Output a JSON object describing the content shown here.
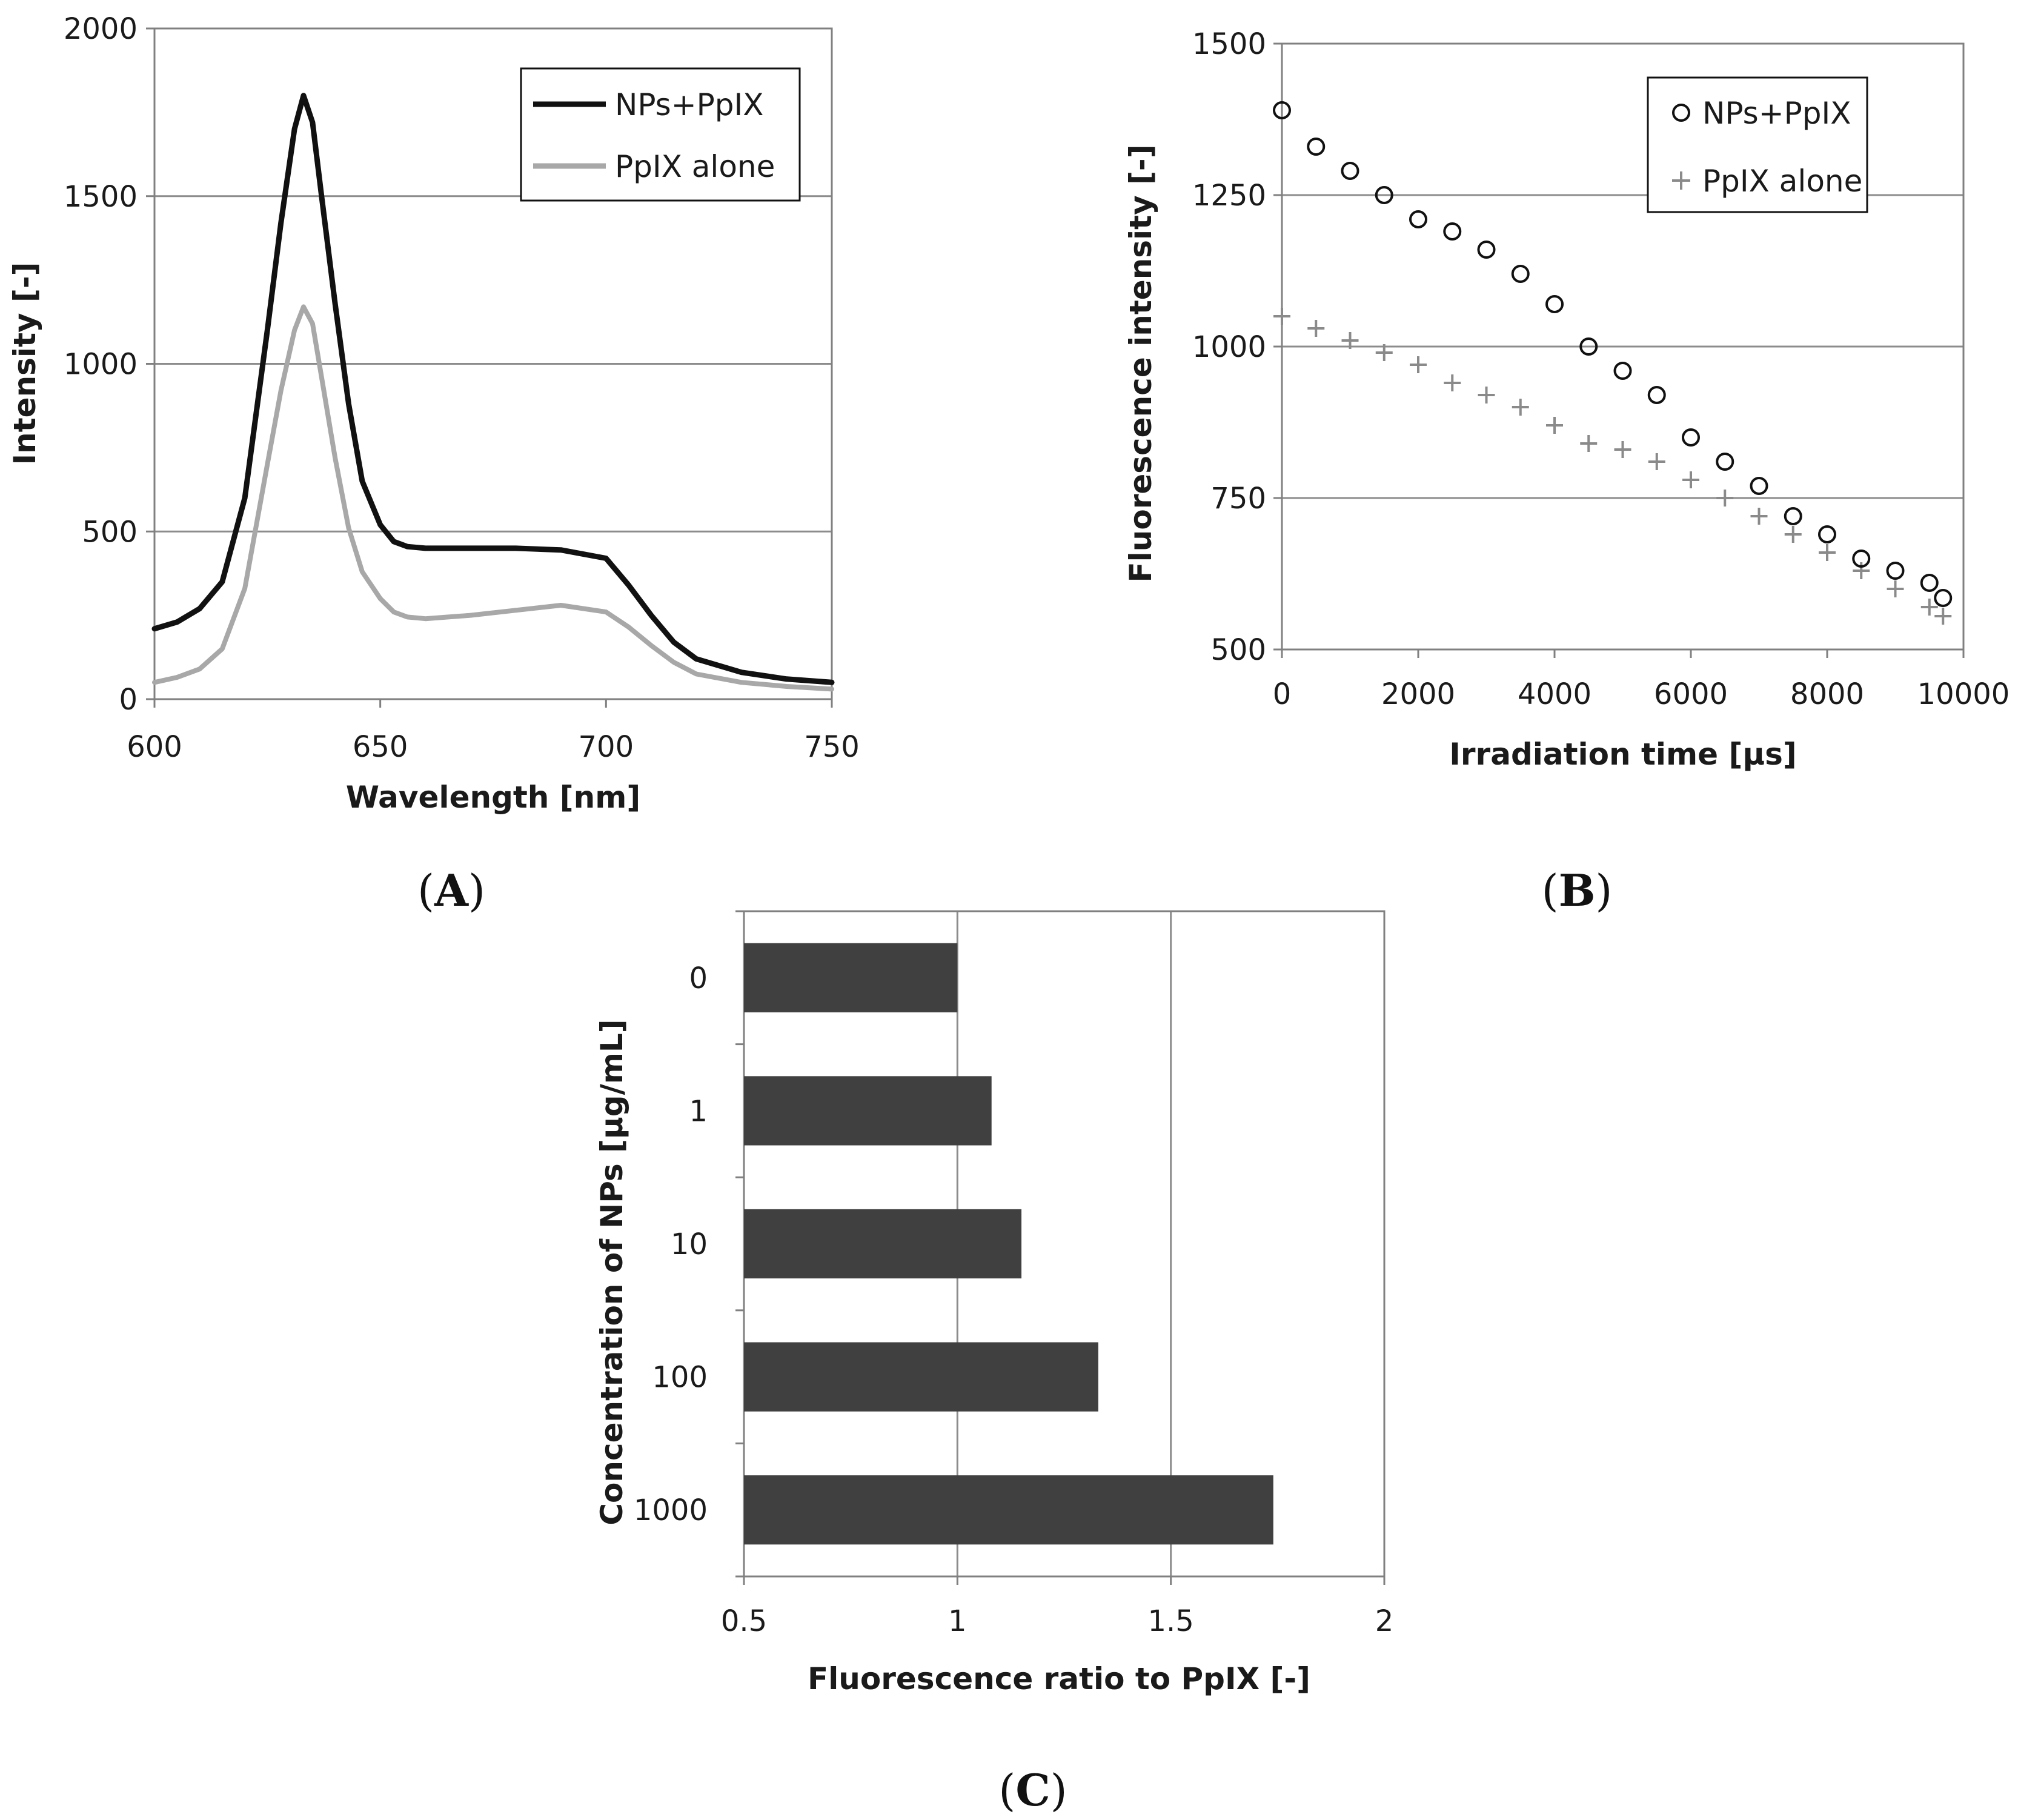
{
  "colors": {
    "nps_line": "#111111",
    "ppix_line": "#a8a8a8",
    "grid": "#8c8c8c",
    "bar": "#404040",
    "frame": "#808080"
  },
  "chart_data": [
    {
      "type": "line",
      "panel_label": "A",
      "title": "",
      "xlabel": "Wavelength [nm]",
      "ylabel": "Intensity [-]",
      "xlim": [
        600,
        750
      ],
      "ylim": [
        0,
        2000
      ],
      "xticks": [
        600,
        650,
        700,
        750
      ],
      "yticks": [
        0,
        500,
        1000,
        1500,
        2000
      ],
      "grid": "horizontal",
      "legend_position": "top-right",
      "x": [
        600,
        605,
        610,
        615,
        620,
        625,
        628,
        631,
        633,
        635,
        637,
        640,
        643,
        646,
        650,
        653,
        656,
        660,
        670,
        680,
        690,
        700,
        705,
        710,
        715,
        720,
        730,
        740,
        750
      ],
      "series": [
        {
          "name": "NPs+PpIX",
          "values": [
            210,
            230,
            270,
            350,
            600,
            1100,
            1420,
            1700,
            1800,
            1720,
            1500,
            1180,
            880,
            650,
            520,
            470,
            455,
            450,
            450,
            450,
            445,
            420,
            340,
            250,
            170,
            120,
            80,
            60,
            50
          ]
        },
        {
          "name": "PpIX alone",
          "values": [
            50,
            65,
            90,
            150,
            330,
            700,
            920,
            1100,
            1170,
            1120,
            960,
            720,
            510,
            380,
            300,
            260,
            245,
            240,
            250,
            265,
            280,
            260,
            215,
            160,
            110,
            75,
            50,
            38,
            30
          ]
        }
      ]
    },
    {
      "type": "scatter",
      "panel_label": "B",
      "title": "",
      "xlabel": "Irradiation time [µs]",
      "ylabel": "Fluorescence intensity [-]",
      "xlim": [
        0,
        10000
      ],
      "ylim": [
        500,
        1500
      ],
      "xticks": [
        0,
        2000,
        4000,
        6000,
        8000,
        10000
      ],
      "yticks": [
        500,
        750,
        1000,
        1250,
        1500
      ],
      "grid": "horizontal",
      "legend_position": "top-right",
      "x": [
        0,
        500,
        1000,
        1500,
        2000,
        2500,
        3000,
        3500,
        4000,
        4500,
        5000,
        5500,
        6000,
        6500,
        7000,
        7500,
        8000,
        8500,
        9000,
        9500,
        9700
      ],
      "series": [
        {
          "name": "NPs+PpIX",
          "marker": "circle",
          "values": [
            1390,
            1330,
            1290,
            1250,
            1210,
            1190,
            1160,
            1120,
            1070,
            1000,
            960,
            920,
            850,
            810,
            770,
            720,
            690,
            650,
            630,
            610,
            585
          ]
        },
        {
          "name": "PpIX alone",
          "marker": "plus",
          "values": [
            1050,
            1030,
            1010,
            990,
            970,
            940,
            920,
            900,
            870,
            840,
            830,
            810,
            780,
            750,
            720,
            690,
            660,
            630,
            600,
            570,
            555
          ]
        }
      ]
    },
    {
      "type": "bar",
      "orientation": "horizontal",
      "panel_label": "C",
      "title": "",
      "xlabel": "Fluorescence ratio to PpIX [-]",
      "ylabel": "Concentration of NPs [µg/mL]",
      "xlim": [
        0.5,
        2
      ],
      "xticks": [
        "0.5",
        "1",
        "1.5",
        "2"
      ],
      "grid": "vertical",
      "categories": [
        "0",
        "1",
        "10",
        "100",
        "1000"
      ],
      "values": [
        1.0,
        1.08,
        1.15,
        1.33,
        1.74
      ]
    }
  ]
}
